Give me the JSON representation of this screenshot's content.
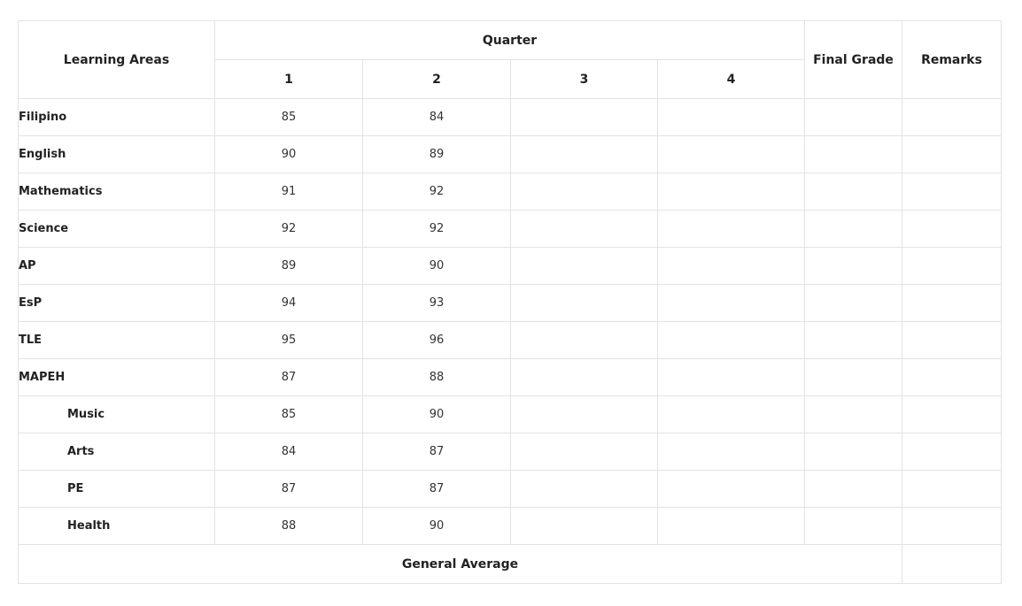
{
  "header": {
    "learning_areas": "Learning Areas",
    "quarter": "Quarter",
    "quarters": [
      "1",
      "2",
      "3",
      "4"
    ],
    "final_grade": "Final Grade",
    "remarks": "Remarks"
  },
  "rows": [
    {
      "subject": "Filipino",
      "q1": "85",
      "q2": "84",
      "q3": "",
      "q4": "",
      "final": "",
      "remarks": "",
      "indent": false
    },
    {
      "subject": "English",
      "q1": "90",
      "q2": "89",
      "q3": "",
      "q4": "",
      "final": "",
      "remarks": "",
      "indent": false
    },
    {
      "subject": "Mathematics",
      "q1": "91",
      "q2": "92",
      "q3": "",
      "q4": "",
      "final": "",
      "remarks": "",
      "indent": false
    },
    {
      "subject": "Science",
      "q1": "92",
      "q2": "92",
      "q3": "",
      "q4": "",
      "final": "",
      "remarks": "",
      "indent": false
    },
    {
      "subject": "AP",
      "q1": "89",
      "q2": "90",
      "q3": "",
      "q4": "",
      "final": "",
      "remarks": "",
      "indent": false
    },
    {
      "subject": "EsP",
      "q1": "94",
      "q2": "93",
      "q3": "",
      "q4": "",
      "final": "",
      "remarks": "",
      "indent": false
    },
    {
      "subject": "TLE",
      "q1": "95",
      "q2": "96",
      "q3": "",
      "q4": "",
      "final": "",
      "remarks": "",
      "indent": false
    },
    {
      "subject": "MAPEH",
      "q1": "87",
      "q2": "88",
      "q3": "",
      "q4": "",
      "final": "",
      "remarks": "",
      "indent": false
    },
    {
      "subject": "Music",
      "q1": "85",
      "q2": "90",
      "q3": "",
      "q4": "",
      "final": "",
      "remarks": "",
      "indent": true
    },
    {
      "subject": "Arts",
      "q1": "84",
      "q2": "87",
      "q3": "",
      "q4": "",
      "final": "",
      "remarks": "",
      "indent": true
    },
    {
      "subject": "PE",
      "q1": "87",
      "q2": "87",
      "q3": "",
      "q4": "",
      "final": "",
      "remarks": "",
      "indent": true
    },
    {
      "subject": "Health",
      "q1": "88",
      "q2": "90",
      "q3": "",
      "q4": "",
      "final": "",
      "remarks": "",
      "indent": true
    }
  ],
  "footer": {
    "general_average_label": "General Average",
    "general_average_value": ""
  }
}
